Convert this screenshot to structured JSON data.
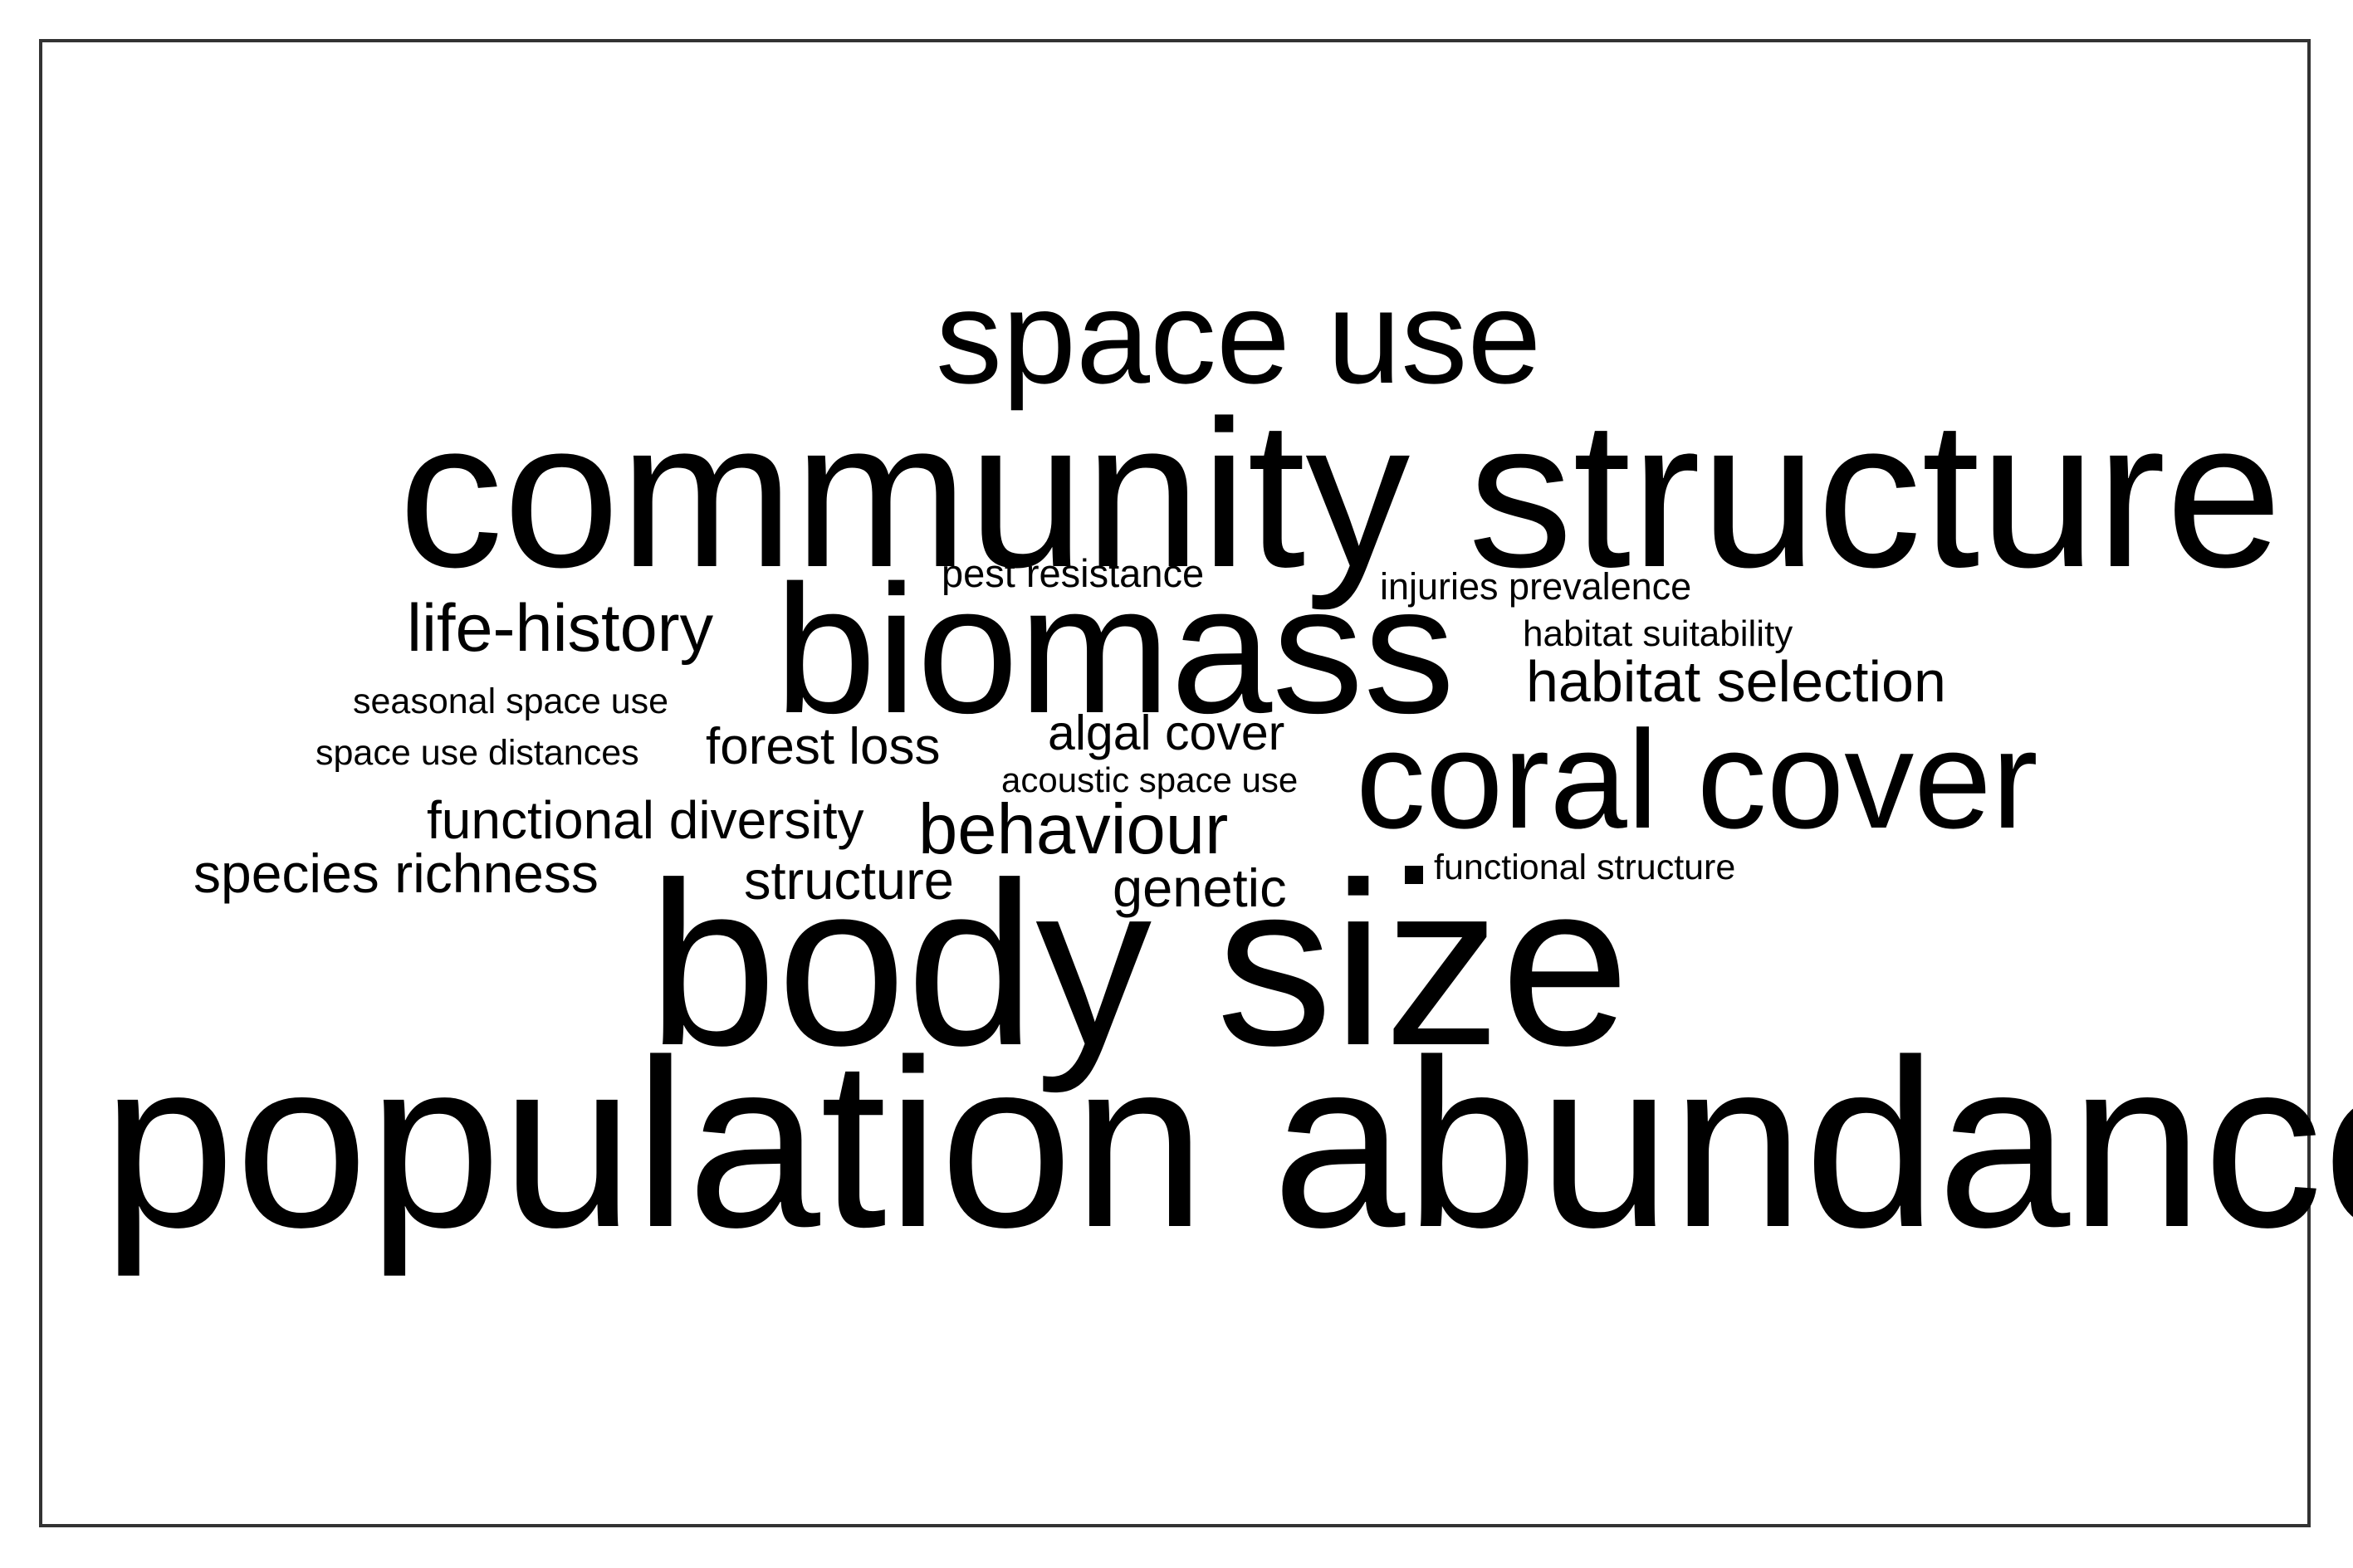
{
  "wordcloud": {
    "words": [
      {
        "key": "population_abundance",
        "text": "population abundance"
      },
      {
        "key": "body_size",
        "text": "body size"
      },
      {
        "key": "community_structure",
        "text": "community structure"
      },
      {
        "key": "biomass",
        "text": "biomass"
      },
      {
        "key": "space_use",
        "text": "space use"
      },
      {
        "key": "coral_cover",
        "text": "coral cover"
      },
      {
        "key": "life_history",
        "text": "life-history"
      },
      {
        "key": "habitat_selection",
        "text": "habitat selection"
      },
      {
        "key": "behaviour",
        "text": "behaviour"
      },
      {
        "key": "functional_diversity",
        "text": "functional diversity"
      },
      {
        "key": "species_richness",
        "text": "species richness"
      },
      {
        "key": "forest_loss",
        "text": "forest loss"
      },
      {
        "key": "structure",
        "text": "structure"
      },
      {
        "key": "genetic",
        "text": "genetic"
      },
      {
        "key": "algal_cover",
        "text": "algal cover"
      },
      {
        "key": "pest_resistance",
        "text": "pest resistance"
      },
      {
        "key": "injuries_prevalence",
        "text": "injuries prevalence"
      },
      {
        "key": "habitat_suitability",
        "text": "habitat suitability"
      },
      {
        "key": "seasonal_space_use",
        "text": "seasonal space use"
      },
      {
        "key": "space_use_distances",
        "text": "space use distances"
      },
      {
        "key": "acoustic_space_use",
        "text": "acoustic space use"
      },
      {
        "key": "functional_structure",
        "text": "functional structure"
      }
    ],
    "colors": {
      "text": "#000000",
      "background": "#ffffff",
      "border": "#333333"
    }
  }
}
